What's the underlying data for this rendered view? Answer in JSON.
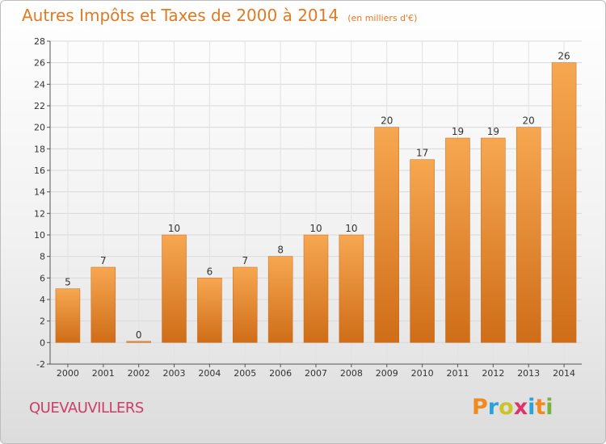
{
  "header": {
    "title": "Autres Impôts et Taxes de 2000 à 2014",
    "subtitle": "(en milliers d'€)"
  },
  "footer": {
    "commune": "QUEVAUVILLERS",
    "logo_letters": [
      "P",
      "r",
      "o",
      "x",
      "i",
      "t",
      "i"
    ],
    "logo_colors": [
      "#f08a1e",
      "#2aa3d8",
      "#c9c428",
      "#e0316b",
      "#2aa3d8",
      "#f08a1e",
      "#79b23c"
    ]
  },
  "colors": {
    "bar_top": "#f7a751",
    "bar_bottom": "#cf6d18",
    "text": "#333333",
    "accent": "#e07a23"
  },
  "chart_data": {
    "type": "bar",
    "categories": [
      "2000",
      "2001",
      "2002",
      "2003",
      "2004",
      "2005",
      "2006",
      "2007",
      "2008",
      "2009",
      "2010",
      "2011",
      "2012",
      "2013",
      "2014"
    ],
    "values": [
      5,
      7,
      0,
      10,
      6,
      7,
      8,
      10,
      10,
      20,
      17,
      19,
      19,
      20,
      26
    ],
    "title": "Autres Impôts et Taxes de 2000 à 2014",
    "ylim": [
      -2,
      28
    ],
    "yticks": [
      -2,
      0,
      2,
      4,
      6,
      8,
      10,
      12,
      14,
      16,
      18,
      20,
      22,
      24,
      26,
      28
    ],
    "grid": true,
    "legend": "none"
  }
}
